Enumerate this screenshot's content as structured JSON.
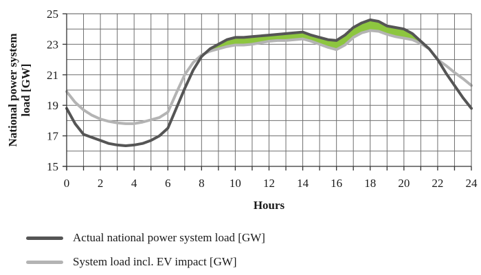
{
  "chart_data": {
    "type": "line",
    "xlabel": "Hours",
    "ylabel": "National power system load [GW]",
    "ylabel_lines": [
      "National power system",
      "load [GW]"
    ],
    "xlim": [
      0,
      24
    ],
    "ylim": [
      15,
      25
    ],
    "x_ticks": [
      0,
      2,
      4,
      6,
      8,
      10,
      12,
      14,
      16,
      18,
      20,
      22,
      24
    ],
    "y_ticks": [
      15,
      17,
      19,
      21,
      23,
      25
    ],
    "grid": true,
    "grid_x_step": 1,
    "grid_y_step": 1,
    "legend_position": "bottom",
    "x": [
      0,
      0.5,
      1,
      1.5,
      2,
      2.5,
      3,
      3.5,
      4,
      4.5,
      5,
      5.5,
      6,
      6.5,
      7,
      7.5,
      8,
      8.5,
      9,
      9.5,
      10,
      10.5,
      11,
      11.5,
      12,
      12.5,
      13,
      13.5,
      14,
      14.5,
      15,
      15.5,
      16,
      16.5,
      17,
      17.5,
      18,
      18.5,
      19,
      19.5,
      20,
      20.5,
      21,
      21.5,
      22,
      22.5,
      23,
      23.5,
      24
    ],
    "series": [
      {
        "name": "Actual national power system load [GW]",
        "color": "#555555",
        "values": [
          18.8,
          17.8,
          17.1,
          16.9,
          16.7,
          16.5,
          16.4,
          16.35,
          16.4,
          16.5,
          16.7,
          17.0,
          17.5,
          18.8,
          20.1,
          21.3,
          22.2,
          22.7,
          23.0,
          23.3,
          23.45,
          23.45,
          23.5,
          23.55,
          23.6,
          23.65,
          23.7,
          23.75,
          23.8,
          23.6,
          23.45,
          23.3,
          23.25,
          23.6,
          24.1,
          24.4,
          24.6,
          24.5,
          24.2,
          24.1,
          24.0,
          23.7,
          23.2,
          22.7,
          22.0,
          21.1,
          20.3,
          19.5,
          18.8
        ]
      },
      {
        "name": "System load  incl. EV impact [GW]",
        "color": "#b4b4b4",
        "values": [
          19.9,
          19.2,
          18.7,
          18.35,
          18.1,
          17.95,
          17.85,
          17.8,
          17.8,
          17.9,
          18.05,
          18.2,
          18.55,
          19.8,
          21.0,
          21.8,
          22.3,
          22.55,
          22.7,
          22.85,
          22.95,
          22.95,
          23.0,
          23.1,
          23.2,
          23.25,
          23.25,
          23.3,
          23.35,
          23.2,
          23.0,
          22.8,
          22.65,
          22.95,
          23.45,
          23.75,
          23.9,
          23.85,
          23.65,
          23.5,
          23.4,
          23.3,
          23.05,
          22.7,
          22.0,
          21.6,
          21.15,
          20.75,
          20.3
        ]
      }
    ],
    "fill_between": {
      "color": "#8dc63f",
      "description_color": "green"
    }
  },
  "legend": {
    "items": [
      {
        "label": "Actual national power system load [GW]",
        "color": "#555555"
      },
      {
        "label": "System load  incl. EV impact [GW]",
        "color": "#b4b4b4"
      }
    ]
  }
}
